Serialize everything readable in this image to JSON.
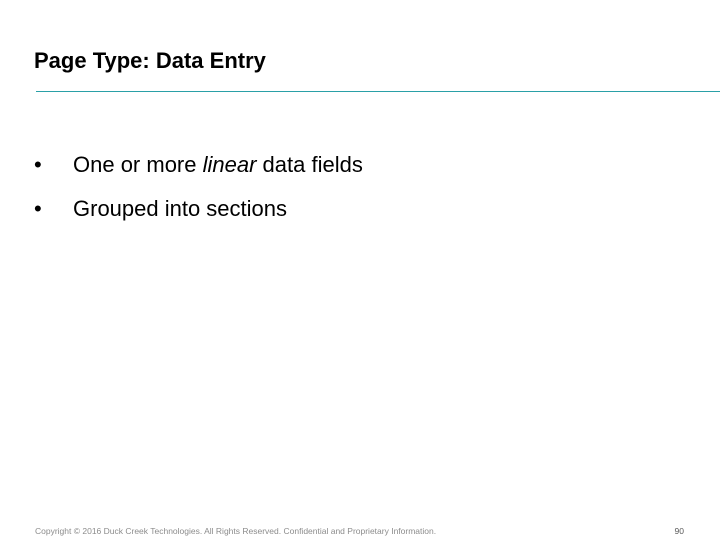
{
  "slide": {
    "title": "Page Type: Data Entry",
    "rule_color": "#2aa0a7",
    "bullet_glyph": "•",
    "bullets": [
      {
        "before": "One or more ",
        "emphasis": "linear",
        "after": " data fields"
      },
      {
        "text": "Grouped into sections"
      }
    ]
  },
  "footer": {
    "copyright": "Copyright © 2016 Duck Creek Technologies. All Rights Reserved. Confidential and Proprietary Information.",
    "page_number": "90"
  }
}
